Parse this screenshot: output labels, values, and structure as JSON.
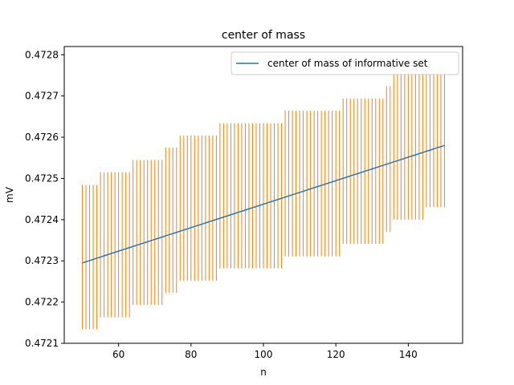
{
  "chart_data": {
    "type": "line",
    "title": "center of mass",
    "xlabel": "n",
    "ylabel": "mV",
    "xlim": [
      45,
      155
    ],
    "ylim": [
      0.4721,
      0.47282
    ],
    "xticks": [
      60,
      80,
      100,
      120,
      140
    ],
    "yticks": [
      0.4721,
      0.4722,
      0.4723,
      0.4724,
      0.4725,
      0.4726,
      0.4727,
      0.4728
    ],
    "ytick_labels": [
      "0.4721",
      "0.4722",
      "0.4723",
      "0.4724",
      "0.4725",
      "0.4726",
      "0.4727",
      "0.4728"
    ],
    "legend": {
      "placement": "top-right",
      "entries": [
        "center of mass of informative set"
      ]
    },
    "grid": false,
    "colors": {
      "line": "#1f77b4",
      "intervals": "#ff7f0e"
    },
    "series": [
      {
        "name": "center of mass of informative set",
        "x": [
          50,
          150
        ],
        "y": [
          0.472295,
          0.47258
        ]
      }
    ],
    "interval_segments": [
      {
        "x_from": 50,
        "x_to": 54,
        "low": 0.472134,
        "high": 0.472484
      },
      {
        "x_from": 55,
        "x_to": 63,
        "low": 0.472163,
        "high": 0.472515
      },
      {
        "x_from": 64,
        "x_to": 72,
        "low": 0.472193,
        "high": 0.472545
      },
      {
        "x_from": 73,
        "x_to": 76,
        "low": 0.472222,
        "high": 0.472575
      },
      {
        "x_from": 77,
        "x_to": 87,
        "low": 0.472252,
        "high": 0.472604
      },
      {
        "x_from": 88,
        "x_to": 105,
        "low": 0.472282,
        "high": 0.472634
      },
      {
        "x_from": 106,
        "x_to": 121,
        "low": 0.472311,
        "high": 0.472664
      },
      {
        "x_from": 122,
        "x_to": 133,
        "low": 0.472341,
        "high": 0.472694
      },
      {
        "x_from": 134,
        "x_to": 135,
        "low": 0.47237,
        "high": 0.472724
      },
      {
        "x_from": 136,
        "x_to": 144,
        "low": 0.4724,
        "high": 0.472755
      },
      {
        "x_from": 145,
        "x_to": 150,
        "low": 0.47243,
        "high": 0.472755
      }
    ]
  }
}
